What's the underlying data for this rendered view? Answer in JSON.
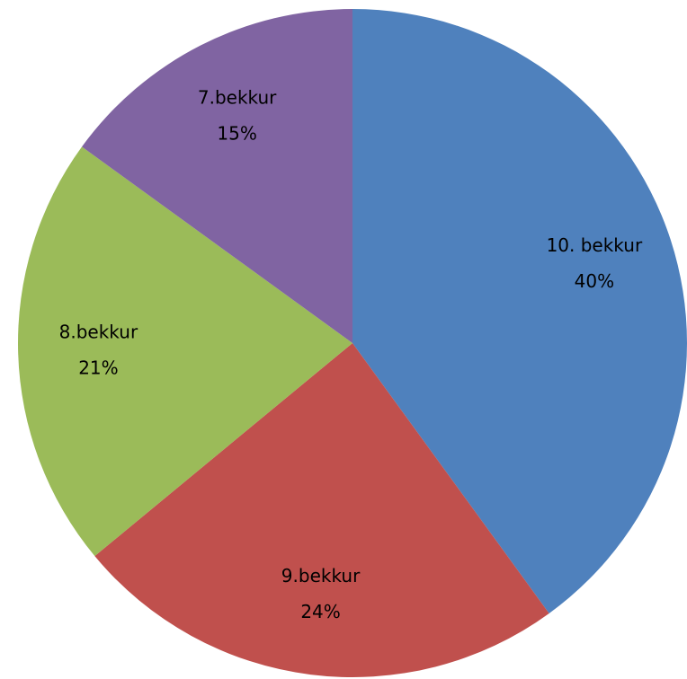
{
  "chart_data": {
    "type": "pie",
    "categories": [
      "10. bekkur",
      "9.bekkur",
      "8.bekkur",
      "7.bekkur"
    ],
    "values": [
      40,
      24,
      21,
      15
    ],
    "value_labels": [
      "40%",
      "24%",
      "21%",
      "15%"
    ],
    "colors": [
      "#4f81bd",
      "#c0504d",
      "#9bbb59",
      "#8064a2"
    ]
  }
}
